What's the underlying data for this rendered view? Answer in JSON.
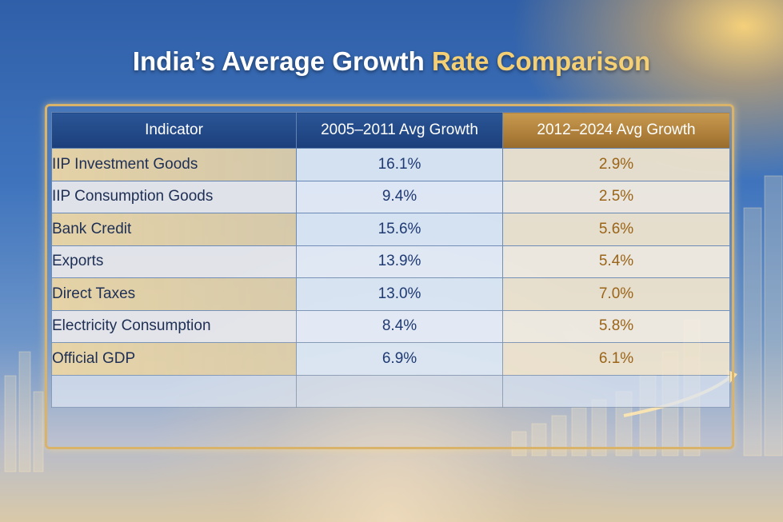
{
  "title": {
    "part1": "India’s Average Growth",
    "part2": "Rate Comparison"
  },
  "colors": {
    "header_blue": "#1c3f7b",
    "header_gold": "#9a6c2c",
    "value_blue": "#1f3a72",
    "value_gold": "#9a6418"
  },
  "chart_data": {
    "type": "table",
    "title": "India’s Average Growth Rate Comparison",
    "columns": [
      "Indicator",
      "2005–2011 Avg Growth",
      "2012–2024 Avg Growth"
    ],
    "rows": [
      {
        "indicator": "IIP Investment Goods",
        "p1": "16.1%",
        "p2": "2.9%"
      },
      {
        "indicator": "IIP Consumption Goods",
        "p1": "9.4%",
        "p2": "2.5%"
      },
      {
        "indicator": "Bank Credit",
        "p1": "15.6%",
        "p2": "5.6%"
      },
      {
        "indicator": "Exports",
        "p1": "13.9%",
        "p2": "5.4%"
      },
      {
        "indicator": "Direct Taxes",
        "p1": "13.0%",
        "p2": "7.0%"
      },
      {
        "indicator": "Electricity Consumption",
        "p1": "8.4%",
        "p2": "5.8%"
      },
      {
        "indicator": "Official GDP",
        "p1": "6.9%",
        "p2": "6.1%"
      }
    ],
    "values_2005_2011": [
      16.1,
      9.4,
      15.6,
      13.9,
      13.0,
      8.4,
      6.9
    ],
    "values_2012_2024": [
      2.9,
      2.5,
      5.6,
      5.4,
      7.0,
      5.8,
      6.1
    ]
  }
}
